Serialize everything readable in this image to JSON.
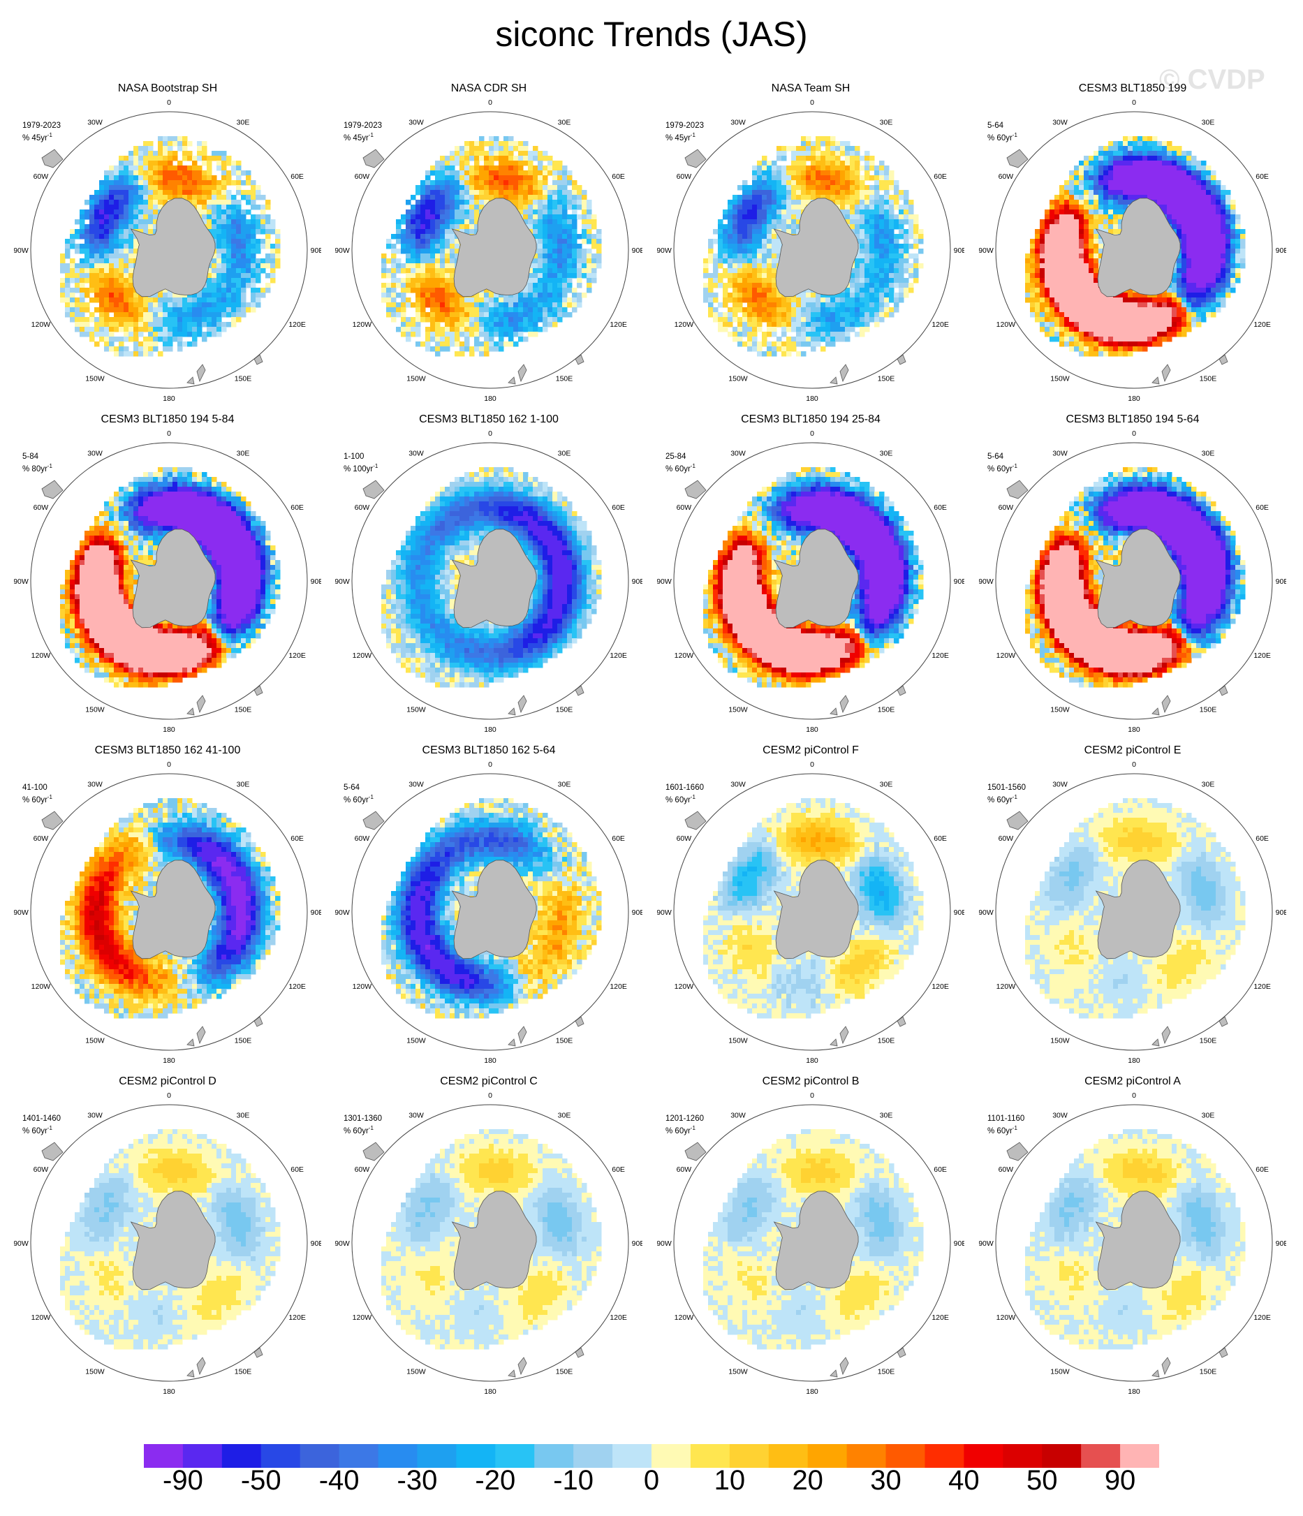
{
  "title": "siconc Trends (JAS)",
  "watermark": "© CVDP",
  "chart_data": {
    "type": "heatmap",
    "projection": "south-polar-stereographic",
    "variable": "siconc",
    "season": "JAS",
    "lon_labels": [
      "0",
      "30E",
      "60E",
      "90E",
      "120E",
      "150E",
      "180",
      "150W",
      "120W",
      "90W",
      "60W",
      "30W"
    ],
    "colorbar": {
      "colors": [
        "#8b2cf0",
        "#5a28f0",
        "#1e1ee6",
        "#2848e6",
        "#3c64dc",
        "#3c78e6",
        "#288cf0",
        "#1ea0f0",
        "#14b4f5",
        "#28c3f5",
        "#78c8f0",
        "#a0d2f0",
        "#bee4f8",
        "#fffab4",
        "#ffe650",
        "#ffd232",
        "#ffbe14",
        "#ffa500",
        "#ff8200",
        "#ff5a00",
        "#ff2d00",
        "#f00000",
        "#dc0000",
        "#c80000",
        "#e65050",
        "#ffb4b4"
      ],
      "tick_labels": [
        "-90",
        "-50",
        "-40",
        "-30",
        "-20",
        "-10",
        "0",
        "10",
        "20",
        "30",
        "40",
        "50",
        "90"
      ]
    },
    "panels": [
      {
        "title": "NASA Bootstrap SH",
        "period": "1979-2023",
        "units": "% 45yr",
        "units_sup": "-1",
        "pattern": "obs",
        "amplitude": 0.35,
        "dense": false
      },
      {
        "title": "NASA CDR SH",
        "period": "1979-2023",
        "units": "% 45yr",
        "units_sup": "-1",
        "pattern": "obs",
        "amplitude": 0.35,
        "dense": false
      },
      {
        "title": "NASA Team SH",
        "period": "1979-2023",
        "units": "% 45yr",
        "units_sup": "-1",
        "pattern": "obs",
        "amplitude": 0.3,
        "dense": false
      },
      {
        "title": "CESM3 BLT1850 199",
        "period": "5-64",
        "units": "% 60yr",
        "units_sup": "-1",
        "pattern": "strong-west-pos-east-neg",
        "amplitude": 0.9,
        "dense": true
      },
      {
        "title": "CESM3 BLT1850 194 5-84",
        "period": "5-84",
        "units": "% 80yr",
        "units_sup": "-1",
        "pattern": "strong-west-pos-east-neg",
        "amplitude": 1.0,
        "dense": true
      },
      {
        "title": "CESM3 BLT1850 162 1-100",
        "period": "1-100",
        "units": "% 100yr",
        "units_sup": "-1",
        "pattern": "neg-ring",
        "amplitude": 0.5,
        "dense": true
      },
      {
        "title": "CESM3 BLT1850 194 25-84",
        "period": "25-84",
        "units": "% 60yr",
        "units_sup": "-1",
        "pattern": "strong-west-pos-east-neg",
        "amplitude": 0.85,
        "dense": true
      },
      {
        "title": "CESM3 BLT1850 194 5-64",
        "period": "5-64",
        "units": "% 60yr",
        "units_sup": "-1",
        "pattern": "strong-west-pos-east-neg",
        "amplitude": 1.0,
        "dense": true
      },
      {
        "title": "CESM3 BLT1850 162 41-100",
        "period": "41-100",
        "units": "% 60yr",
        "units_sup": "-1",
        "pattern": "west-pos-east-neg",
        "amplitude": 0.6,
        "dense": true
      },
      {
        "title": "CESM3 BLT1850 162 5-64",
        "period": "5-64",
        "units": "% 60yr",
        "units_sup": "-1",
        "pattern": "neg-ring-mixed",
        "amplitude": 0.55,
        "dense": true
      },
      {
        "title": "CESM2 piControl F",
        "period": "1601-1660",
        "units": "% 60yr",
        "units_sup": "-1",
        "pattern": "weak-mixed",
        "amplitude": 0.3,
        "dense": true
      },
      {
        "title": "CESM2 piControl E",
        "period": "1501-1560",
        "units": "% 60yr",
        "units_sup": "-1",
        "pattern": "weak-mixed",
        "amplitude": 0.15,
        "dense": true
      },
      {
        "title": "CESM2 piControl D",
        "period": "1401-1460",
        "units": "% 60yr",
        "units_sup": "-1",
        "pattern": "weak-mixed",
        "amplitude": 0.15,
        "dense": true
      },
      {
        "title": "CESM2 piControl C",
        "period": "1301-1360",
        "units": "% 60yr",
        "units_sup": "-1",
        "pattern": "weak-mixed",
        "amplitude": 0.15,
        "dense": true
      },
      {
        "title": "CESM2 piControl B",
        "period": "1201-1260",
        "units": "% 60yr",
        "units_sup": "-1",
        "pattern": "weak-mixed",
        "amplitude": 0.15,
        "dense": true
      },
      {
        "title": "CESM2 piControl A",
        "period": "1101-1160",
        "units": "% 60yr",
        "units_sup": "-1",
        "pattern": "weak-mixed",
        "amplitude": 0.15,
        "dense": true
      }
    ]
  }
}
